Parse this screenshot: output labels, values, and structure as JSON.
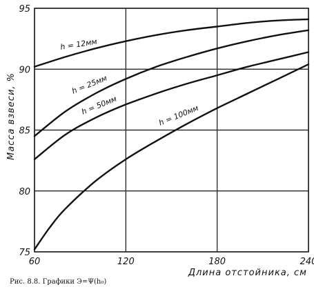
{
  "caption": "Рис. 8.8. Графики Э=Ψ(h₀)",
  "chart_data": {
    "type": "line",
    "xlabel": "Длина отстойника, см",
    "ylabel": "Масса взвеси, %",
    "xlim": [
      60,
      240
    ],
    "ylim": [
      75,
      95
    ],
    "xticks": [
      60,
      120,
      180,
      240
    ],
    "yticks": [
      75,
      80,
      85,
      90,
      95
    ],
    "grid": true,
    "series": [
      {
        "name": "h = 12мм",
        "x": [
          60,
          80,
          100,
          120,
          140,
          160,
          180,
          200,
          220,
          240
        ],
        "y": [
          90.2,
          91.0,
          91.7,
          92.3,
          92.8,
          93.2,
          93.5,
          93.8,
          94.0,
          94.1
        ]
      },
      {
        "name": "h = 25мм",
        "x": [
          60,
          80,
          100,
          120,
          140,
          160,
          180,
          200,
          220,
          240
        ],
        "y": [
          84.5,
          86.5,
          88.0,
          89.2,
          90.2,
          91.0,
          91.7,
          92.3,
          92.8,
          93.2
        ]
      },
      {
        "name": "h = 50мм",
        "x": [
          60,
          80,
          100,
          120,
          140,
          160,
          180,
          200,
          220,
          240
        ],
        "y": [
          82.6,
          84.6,
          86.0,
          87.1,
          88.0,
          88.8,
          89.5,
          90.2,
          90.8,
          91.4
        ]
      },
      {
        "name": "h = 100мм",
        "x": [
          60,
          70,
          80,
          100,
          120,
          140,
          160,
          180,
          200,
          220,
          240
        ],
        "y": [
          75.2,
          77.0,
          78.5,
          80.8,
          82.6,
          84.1,
          85.5,
          86.8,
          88.0,
          89.2,
          90.4
        ]
      }
    ]
  }
}
